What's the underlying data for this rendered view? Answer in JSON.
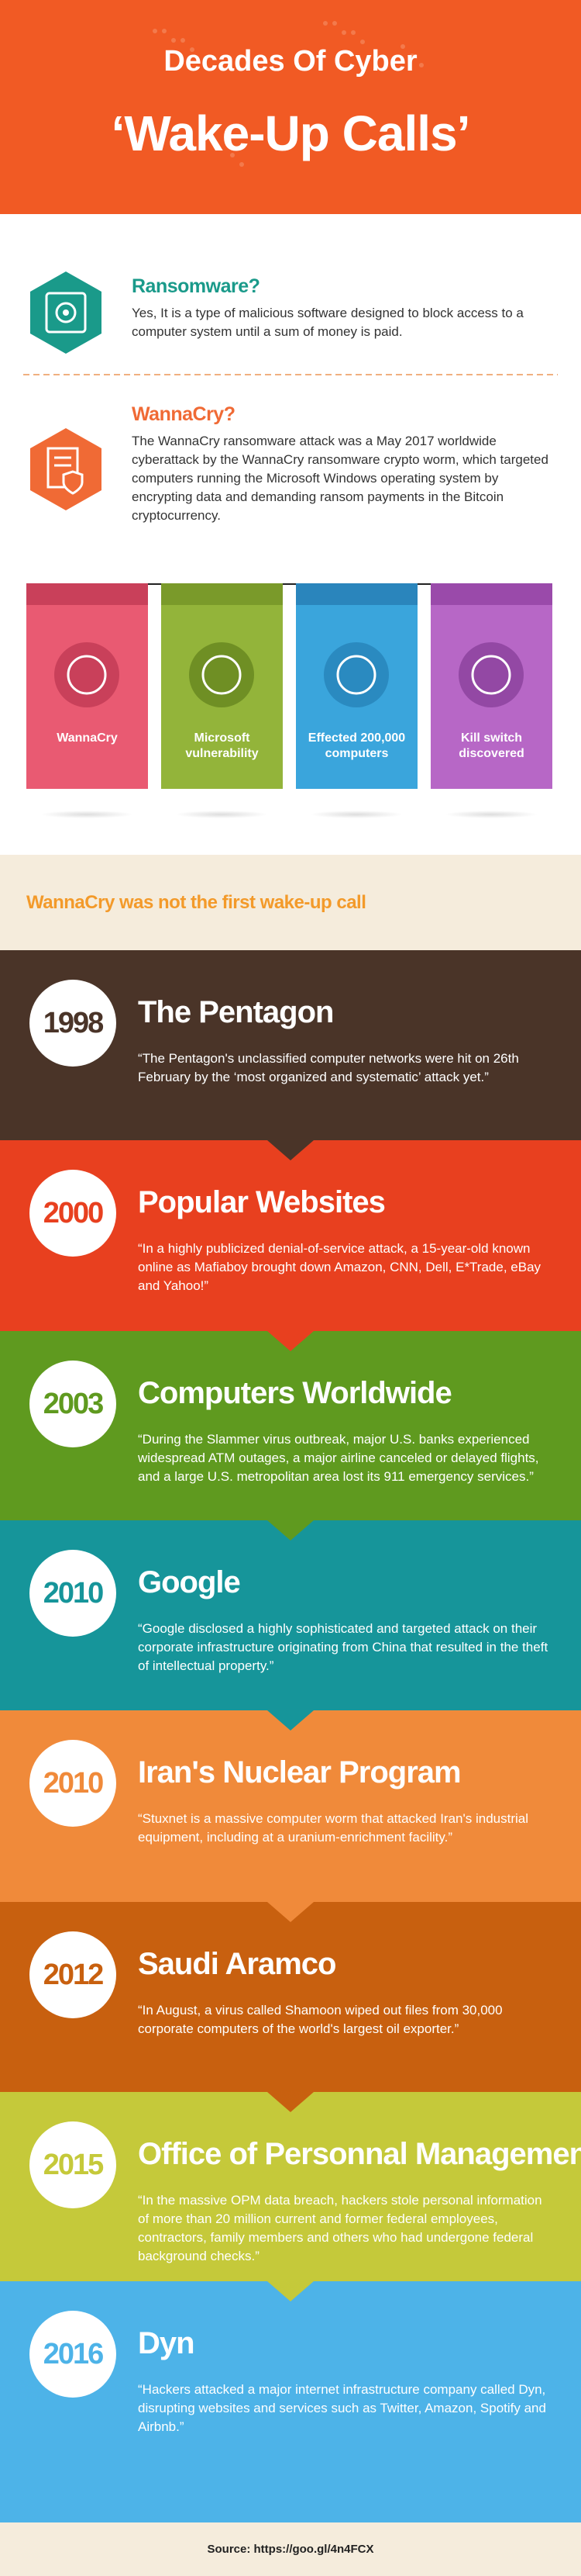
{
  "header": {
    "title_line1": "Decades Of Cyber",
    "title_line2": "‘Wake-Up Calls’"
  },
  "intro": [
    {
      "heading": "Ransomware?",
      "text": "Yes, It is a type of malicious software designed to block access to a computer system until a sum of money is paid."
    },
    {
      "heading": "WannaCry?",
      "text": "The WannaCry ransomware attack was a May 2017 worldwide cyberattack by the WannaCry ransomware crypto worm, which targeted computers running the Microsoft Windows operating system by encrypting data and demanding ransom payments in the Bitcoin cryptocurrency."
    }
  ],
  "cards": [
    "WannaCry",
    "Microsoft vulnerability",
    "Effected 200,000 computers",
    "Kill switch discovered"
  ],
  "timeline_heading": "WannaCry was not the first wake-up call",
  "timeline": [
    {
      "year": "1998",
      "title": "The Pentagon",
      "text": "“The Pentagon's unclassified computer networks were hit on 26th February by the ‘most organized and systematic’ attack yet.”"
    },
    {
      "year": "2000",
      "title": "Popular Websites",
      "text": "“In a highly publicized denial-of-service attack, a 15-year-old known online as Mafiaboy brought down Amazon, CNN, Dell, E*Trade, eBay and Yahoo!”"
    },
    {
      "year": "2003",
      "title": "Computers Worldwide",
      "text": "“During the Slammer virus outbreak, major U.S. banks experienced widespread ATM outages, a major airline canceled or delayed flights, and a large U.S. metropolitan area lost its 911 emergency services.”"
    },
    {
      "year": "2010",
      "title": "Google",
      "text": "“Google disclosed a highly sophisticated and targeted attack on their corporate infrastructure originating from China that resulted in the theft of intellectual property.”"
    },
    {
      "year": "2010",
      "title": "Iran's Nuclear Program",
      "text": "“Stuxnet is a massive computer worm that attacked Iran's industrial equipment, including at a uranium-enrichment facility.”"
    },
    {
      "year": "2012",
      "title": "Saudi Aramco",
      "text": "“In August, a virus called Shamoon wiped out files from 30,000 corporate computers of the world's largest oil exporter.”"
    },
    {
      "year": "2015",
      "title": "Office of Personnal Management",
      "text": "“In the massive OPM data breach, hackers stole personal information of more than 20 million current and former federal employees, contractors, family members and others who had undergone federal background checks.”"
    },
    {
      "year": "2016",
      "title": "Dyn",
      "text": "“Hackers attacked a major internet infrastructure company called Dyn, disrupting websites and services such as Twitter, Amazon, Spotify and Airbnb.”"
    }
  ],
  "source": "Source: https://goo.gl/4n4FCX"
}
